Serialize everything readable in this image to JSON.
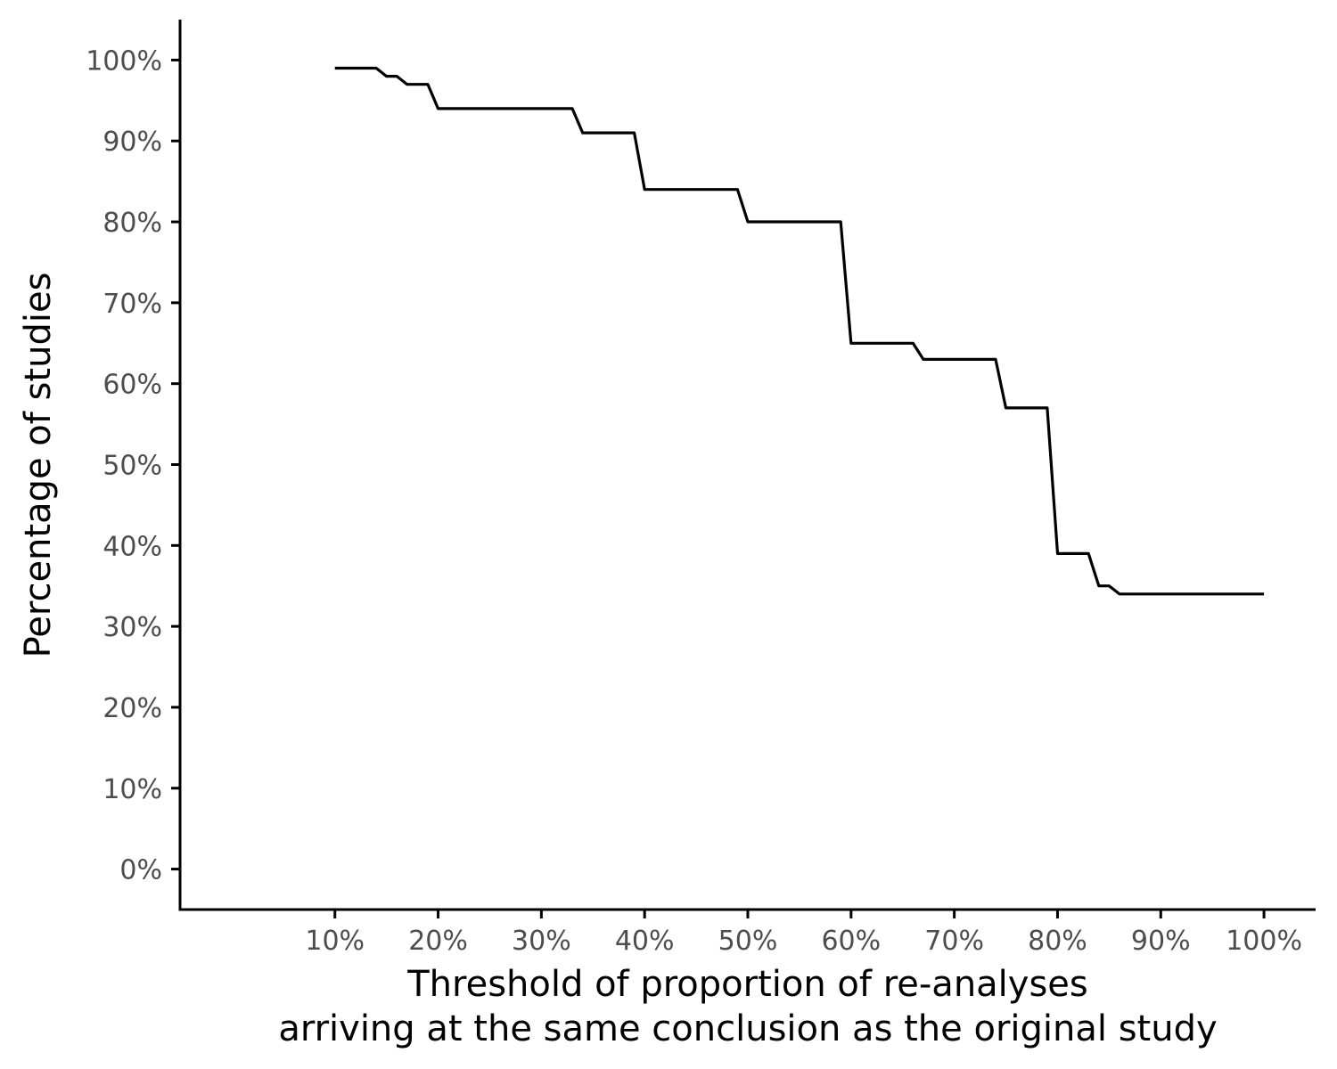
{
  "chart_data": {
    "type": "line",
    "title": "",
    "xlabel_lines": [
      "Threshold of proportion of re-analyses",
      "arriving at the same conclusion as the original study"
    ],
    "ylabel": "Percentage of studies",
    "x_unit": "%",
    "y_unit": "%",
    "xlim": [
      -5,
      105
    ],
    "ylim": [
      -5,
      105
    ],
    "x_ticks": [
      10,
      20,
      30,
      40,
      50,
      60,
      70,
      80,
      90,
      100
    ],
    "x_tick_labels": [
      "10%",
      "20%",
      "30%",
      "40%",
      "50%",
      "60%",
      "70%",
      "80%",
      "90%",
      "100%"
    ],
    "y_ticks": [
      0,
      10,
      20,
      30,
      40,
      50,
      60,
      70,
      80,
      90,
      100
    ],
    "y_tick_labels": [
      "0%",
      "10%",
      "20%",
      "30%",
      "40%",
      "50%",
      "60%",
      "70%",
      "80%",
      "90%",
      "100%"
    ],
    "grid": false,
    "legend": "none",
    "line_color": "#000000",
    "series": [
      {
        "x": [
          10,
          14,
          15,
          16,
          17,
          19,
          20,
          33,
          34,
          39,
          40,
          49,
          50,
          59,
          60,
          66,
          67,
          74,
          75,
          79,
          80,
          83,
          84,
          85,
          86,
          100
        ],
        "y": [
          99,
          99,
          98,
          98,
          97,
          97,
          94,
          94,
          91,
          91,
          84,
          84,
          80,
          80,
          65,
          65,
          63,
          63,
          57,
          57,
          39,
          39,
          35,
          35,
          34,
          34
        ]
      }
    ]
  }
}
